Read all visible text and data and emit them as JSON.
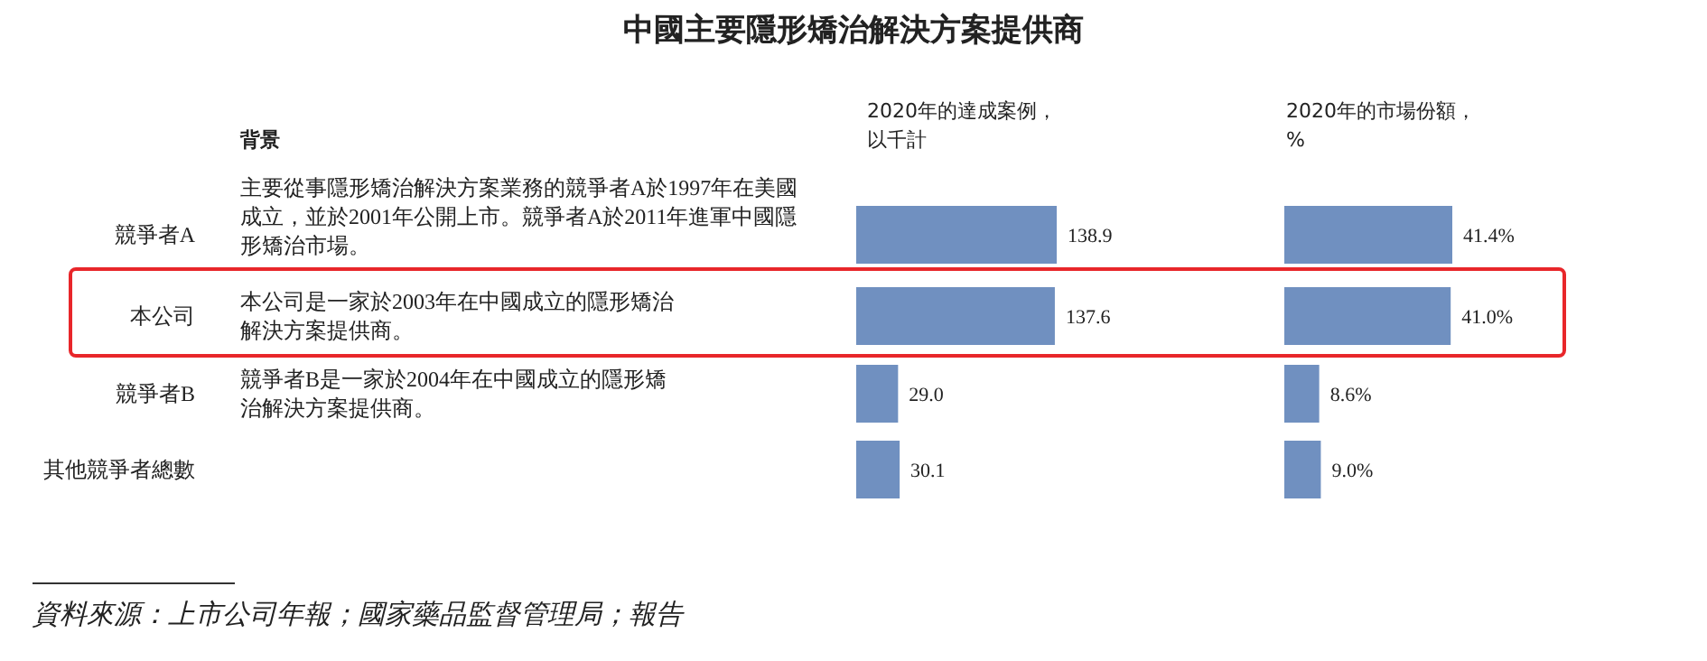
{
  "chart_data": [
    {
      "type": "other",
      "title": "中國主要隱形矯治解決方案提供商",
      "xlabel": "背景",
      "annotations": [
        "主要從事隱形矯治解決方案業務的競爭者A於1997年在美國成立，並於2001年公開上市。競爭者A於2011年進軍中國隱形矯治市場。",
        "本公司是一家於2003年在中國成立的隱形矯治解決方案提供商。",
        "競爭者B是一家於2004年在中國成立的隱形矯治解決方案提供商。",
        "資料來源：上市公司年報；國家藥品監督管理局；報告"
      ]
    },
    {
      "type": "bar",
      "orientation": "horizontal",
      "xlabel": "2020年的達成案例，以千計",
      "categories": [
        "競爭者A",
        "本公司",
        "競爭者B",
        "其他競爭者總數"
      ],
      "color": "#7090c0",
      "values": [
        138.9,
        137.6,
        29.0,
        30.1
      ],
      "value_labels": [
        "138.9",
        "137.6",
        "29.0",
        "30.1"
      ]
    },
    {
      "type": "bar",
      "orientation": "horizontal",
      "xlabel": "2020年的市場份額，%",
      "categories": [
        null,
        null,
        null,
        null
      ],
      "color": "#7090c0",
      "values": [
        41.4,
        41.0,
        8.6,
        9.0
      ],
      "value_labels": [
        "41.4%",
        "41.0%",
        "8.6%",
        "9.0%"
      ]
    }
  ]
}
